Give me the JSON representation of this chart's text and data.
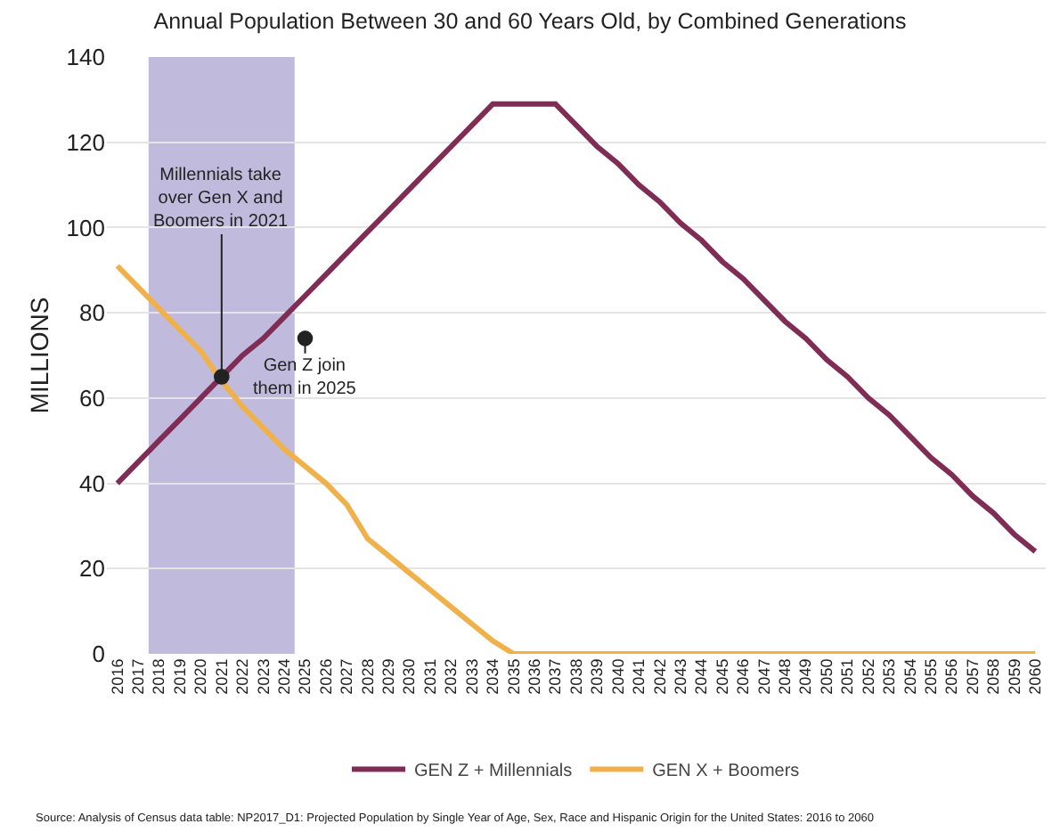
{
  "chart_data": {
    "type": "line",
    "title": "Annual Population Between 30 and 60 Years Old, by Combined Generations",
    "ylabel": "MILLIONS",
    "categories": [
      "2016",
      "2017",
      "2018",
      "2019",
      "2020",
      "2021",
      "2022",
      "2023",
      "2024",
      "2025",
      "2026",
      "2027",
      "2028",
      "2029",
      "2030",
      "2031",
      "2032",
      "2033",
      "2034",
      "2035",
      "2036",
      "2037",
      "2038",
      "2039",
      "2040",
      "2041",
      "2042",
      "2043",
      "2044",
      "2045",
      "2046",
      "2047",
      "2048",
      "2049",
      "2050",
      "2051",
      "2052",
      "2053",
      "2054",
      "2055",
      "2056",
      "2057",
      "2058",
      "2059",
      "2060"
    ],
    "series": [
      {
        "name": "GEN Z + Millennials",
        "color": "#7f2d55",
        "values": [
          40,
          45,
          50,
          55,
          60,
          65,
          70,
          74,
          79,
          84,
          89,
          94,
          99,
          104,
          109,
          114,
          119,
          124,
          129,
          129,
          129,
          129,
          124,
          119,
          115,
          110,
          106,
          101,
          97,
          92,
          88,
          83,
          78,
          74,
          69,
          65,
          60,
          56,
          51,
          46,
          42,
          37,
          33,
          28,
          24
        ]
      },
      {
        "name": "GEN X + Boomers",
        "color": "#f0b04a",
        "values": [
          91,
          86,
          81,
          76,
          71,
          64,
          58,
          53,
          48,
          44,
          40,
          35,
          27,
          23,
          19,
          15,
          11,
          7,
          3,
          0,
          0,
          0,
          0,
          0,
          0,
          0,
          0,
          0,
          0,
          0,
          0,
          0,
          0,
          0,
          0,
          0,
          0,
          0,
          0,
          0,
          0,
          0,
          0,
          0,
          0
        ]
      }
    ],
    "ylim": [
      0,
      140
    ],
    "yticks": [
      0,
      20,
      40,
      60,
      80,
      100,
      120,
      140
    ],
    "grid": "y",
    "legend": "bottom",
    "marker": "none",
    "line_style": "solid",
    "bands": [
      {
        "axis": "x",
        "from": "2018",
        "to": "2024",
        "color": "#b9b4d8"
      }
    ],
    "annotations": [
      {
        "text": "Millennials take over Gen X and Boomers in 2021",
        "x": "2021",
        "y": 65
      },
      {
        "text": "Gen Z join them in 2025",
        "x": "2025",
        "y": 74
      },
      "Source: Analysis of Census data table: NP2017_D1: Projected Population by Single Year of Age, Sex, Race and Hispanic Origin for the United States: 2016 to 2060"
    ]
  }
}
